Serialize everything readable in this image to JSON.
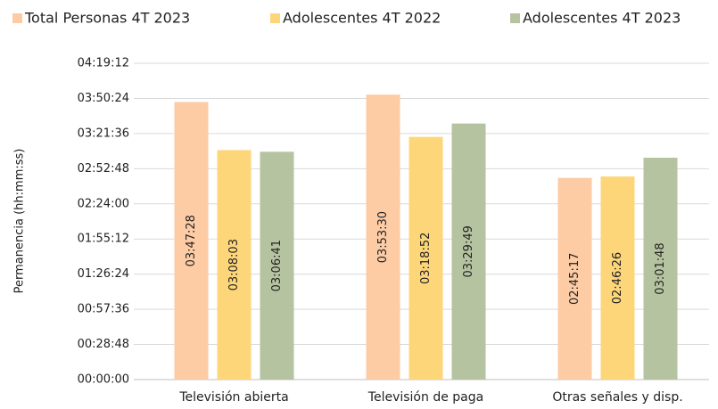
{
  "chart_data": {
    "type": "bar",
    "ylabel": "Permanencia (hh:mm:ss)",
    "categories": [
      "Televisión abierta",
      "Televisión de paga",
      "Otras señales y disp."
    ],
    "series": [
      {
        "name": "Total Personas 4T 2023",
        "color": "#fdcba4",
        "values": [
          13648,
          14010,
          9917
        ],
        "value_labels": [
          "03:47:28",
          "03:53:30",
          "02:45:17"
        ]
      },
      {
        "name": "Adolescentes 4T 2022",
        "color": "#fdd67a",
        "values": [
          11283,
          11932,
          9986
        ],
        "value_labels": [
          "03:08:03",
          "03:18:52",
          "02:46:26"
        ]
      },
      {
        "name": "Adolescentes 4T 2023",
        "color": "#b6c3a0",
        "values": [
          11201,
          12589,
          10908
        ],
        "value_labels": [
          "03:06:41",
          "03:29:49",
          "03:01:48"
        ]
      }
    ],
    "ylim": [
      0,
      15552
    ],
    "yticks": [
      {
        "value": 0,
        "label": "00:00:00"
      },
      {
        "value": 1728,
        "label": "00:28:48"
      },
      {
        "value": 3456,
        "label": "00:57:36"
      },
      {
        "value": 5184,
        "label": "01:26:24"
      },
      {
        "value": 6912,
        "label": "01:55:12"
      },
      {
        "value": 8640,
        "label": "02:24:00"
      },
      {
        "value": 10368,
        "label": "02:52:48"
      },
      {
        "value": 12096,
        "label": "03:21:36"
      },
      {
        "value": 13824,
        "label": "03:50:24"
      },
      {
        "value": 15552,
        "label": "04:19:12"
      }
    ],
    "grid": true,
    "legend": "top"
  }
}
